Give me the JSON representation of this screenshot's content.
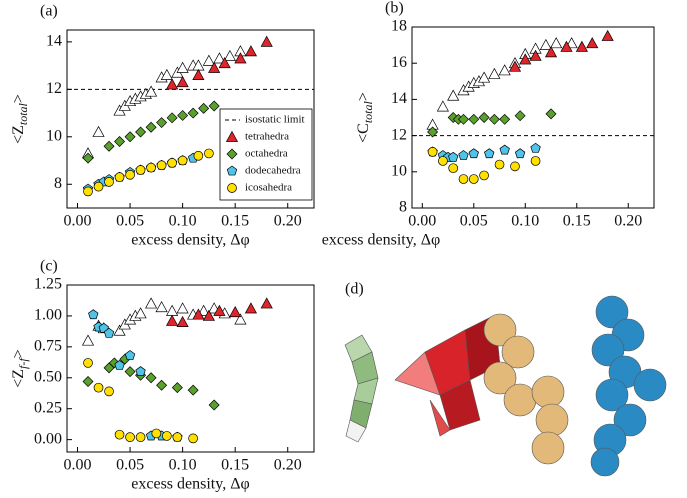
{
  "chart_data": [
    {
      "type": "scatter",
      "panel_label": "(a)",
      "xlabel": "excess density, Δφ",
      "ylabel": {
        "text": "<Z",
        "sub": "total",
        "end": ">"
      },
      "xlim": [
        -0.01,
        0.225
      ],
      "ylim": [
        7,
        14.5
      ],
      "xticks": [
        {
          "value": 0,
          "label": "0.00"
        },
        0.05,
        {
          "value": 0.1,
          "label": "0.10"
        },
        0.15,
        {
          "value": 0.2,
          "label": "0.20"
        }
      ],
      "yticks": [
        8,
        10,
        12,
        14
      ],
      "reference_line": {
        "value": 12,
        "label": "isostatic limit"
      },
      "legend": "lower right",
      "series": [
        {
          "color": "#ffffff",
          "marker": "triangle",
          "x": [
            0.01,
            0.02,
            0.04,
            0.045,
            0.05,
            0.055,
            0.06,
            0.065,
            0.07,
            0.08,
            0.085,
            0.095,
            0.1,
            0.11,
            0.115,
            0.125,
            0.135,
            0.145,
            0.155
          ],
          "values": [
            9.3,
            10.2,
            11.1,
            11.3,
            11.5,
            11.6,
            11.7,
            11.8,
            11.9,
            12.5,
            12.6,
            12.7,
            12.9,
            13.0,
            13.0,
            13.2,
            13.3,
            13.4,
            13.6
          ]
        },
        {
          "name": "tetrahedra",
          "color": "#e0242c",
          "marker": "triangle",
          "x": [
            0.09,
            0.1,
            0.115,
            0.13,
            0.14,
            0.155,
            0.165,
            0.18
          ],
          "values": [
            12.2,
            12.3,
            12.6,
            12.9,
            13.1,
            13.3,
            13.6,
            14.0
          ]
        },
        {
          "name": "octahedra",
          "color": "#5aa02c",
          "marker": "diamond",
          "x": [
            0.01,
            0.03,
            0.04,
            0.05,
            0.06,
            0.07,
            0.08,
            0.09,
            0.1,
            0.11,
            0.12,
            0.13
          ],
          "values": [
            9.1,
            9.6,
            9.8,
            10.0,
            10.2,
            10.4,
            10.6,
            10.8,
            10.9,
            11.0,
            11.2,
            11.3
          ]
        },
        {
          "name": "dodecahedra",
          "color": "#4fc3e8",
          "marker": "pentagon",
          "x": [
            0.01,
            0.02,
            0.025,
            0.03,
            0.04,
            0.05,
            0.06,
            0.07,
            0.08,
            0.09,
            0.1,
            0.11
          ],
          "values": [
            7.8,
            8.0,
            8.1,
            8.2,
            8.3,
            8.5,
            8.6,
            8.7,
            8.8,
            8.9,
            9.0,
            9.1
          ]
        },
        {
          "name": "icosahedra",
          "color": "#ffe000",
          "marker": "circle",
          "x": [
            0.01,
            0.02,
            0.03,
            0.04,
            0.05,
            0.06,
            0.07,
            0.08,
            0.09,
            0.1,
            0.115,
            0.125
          ],
          "values": [
            7.7,
            7.9,
            8.1,
            8.3,
            8.4,
            8.6,
            8.7,
            8.8,
            8.9,
            9.0,
            9.2,
            9.3
          ]
        }
      ]
    },
    {
      "type": "scatter",
      "panel_label": "(b)",
      "xlabel": "excess density, Δφ",
      "ylabel": {
        "text": "<C",
        "sub": "total",
        "end": ">"
      },
      "xlim": [
        -0.01,
        0.225
      ],
      "ylim": [
        8,
        18
      ],
      "xticks": [
        {
          "value": 0,
          "label": "0.00"
        },
        0.05,
        {
          "value": 0.1,
          "label": "0.10"
        },
        0.15,
        {
          "value": 0.2,
          "label": "0.20"
        }
      ],
      "yticks": [
        8,
        10,
        12,
        14,
        16,
        18
      ],
      "reference_line": {
        "value": 12
      },
      "series": [
        {
          "color": "#ffffff",
          "marker": "triangle",
          "x": [
            0.01,
            0.02,
            0.03,
            0.04,
            0.045,
            0.05,
            0.055,
            0.06,
            0.07,
            0.08,
            0.09,
            0.1,
            0.11,
            0.12,
            0.13,
            0.145
          ],
          "values": [
            12.6,
            13.6,
            14.2,
            14.5,
            14.7,
            14.9,
            15.0,
            15.2,
            15.4,
            15.6,
            16.0,
            16.5,
            16.8,
            17.0,
            17.1,
            17.1
          ]
        },
        {
          "color": "#e0242c",
          "marker": "triangle",
          "x": [
            0.09,
            0.1,
            0.11,
            0.125,
            0.14,
            0.155,
            0.165,
            0.18
          ],
          "values": [
            15.8,
            16.2,
            16.4,
            16.6,
            16.9,
            16.9,
            17.1,
            17.5
          ]
        },
        {
          "color": "#5aa02c",
          "marker": "diamond",
          "x": [
            0.01,
            0.03,
            0.035,
            0.04,
            0.05,
            0.06,
            0.07,
            0.08,
            0.095,
            0.125
          ],
          "values": [
            12.2,
            13.0,
            12.9,
            12.9,
            12.9,
            13.0,
            12.9,
            12.9,
            13.1,
            13.2
          ]
        },
        {
          "color": "#4fc3e8",
          "marker": "pentagon",
          "x": [
            0.01,
            0.02,
            0.025,
            0.03,
            0.04,
            0.05,
            0.065,
            0.08,
            0.095,
            0.11
          ],
          "values": [
            11.1,
            10.9,
            10.8,
            10.8,
            10.9,
            11.0,
            11.0,
            11.2,
            11.0,
            11.3
          ]
        },
        {
          "color": "#ffe000",
          "marker": "circle",
          "x": [
            0.01,
            0.02,
            0.03,
            0.04,
            0.05,
            0.06,
            0.075,
            0.09,
            0.11
          ],
          "values": [
            11.1,
            10.6,
            10.2,
            9.6,
            9.6,
            9.8,
            10.4,
            10.3,
            10.6
          ]
        }
      ]
    },
    {
      "type": "scatter",
      "panel_label": "(c)",
      "xlabel": "excess density, Δφ",
      "ylabel": {
        "text": "<Z",
        "sub": "f-f",
        "end": ">"
      },
      "xlim": [
        -0.01,
        0.225
      ],
      "ylim": [
        -0.1,
        1.25
      ],
      "xticks": [
        {
          "value": 0,
          "label": "0.00"
        },
        0.05,
        {
          "value": 0.1,
          "label": "0.10"
        },
        0.15,
        {
          "value": 0.2,
          "label": "0.20"
        }
      ],
      "yticks": [
        {
          "value": 0,
          "label": "0.00"
        },
        0.25,
        {
          "value": 0.5,
          "label": "0.50"
        },
        0.75,
        {
          "value": 1,
          "label": "1.00"
        },
        1.25
      ],
      "series": [
        {
          "color": "#ffffff",
          "marker": "triangle",
          "x": [
            0.01,
            0.02,
            0.025,
            0.04,
            0.045,
            0.05,
            0.055,
            0.06,
            0.07,
            0.08,
            0.09,
            0.1,
            0.11,
            0.12,
            0.13,
            0.14,
            0.155
          ],
          "values": [
            0.8,
            0.92,
            0.9,
            0.88,
            0.93,
            0.97,
            1.0,
            1.02,
            1.1,
            1.07,
            1.04,
            1.06,
            1.01,
            1.04,
            1.06,
            1.02,
            0.97
          ]
        },
        {
          "color": "#e0242c",
          "marker": "triangle",
          "x": [
            0.09,
            0.1,
            0.115,
            0.125,
            0.135,
            0.15,
            0.165,
            0.18
          ],
          "values": [
            0.96,
            0.95,
            1.01,
            1.0,
            1.04,
            1.03,
            1.06,
            1.1
          ]
        },
        {
          "color": "#5aa02c",
          "marker": "diamond",
          "x": [
            0.01,
            0.03,
            0.035,
            0.045,
            0.05,
            0.06,
            0.07,
            0.08,
            0.095,
            0.11,
            0.13
          ],
          "values": [
            0.47,
            0.58,
            0.62,
            0.65,
            0.55,
            0.52,
            0.5,
            0.44,
            0.42,
            0.4,
            0.28
          ]
        },
        {
          "color": "#4fc3e8",
          "marker": "pentagon",
          "x": [
            0.015,
            0.02,
            0.025,
            0.03,
            0.04,
            0.05,
            0.06,
            0.07,
            0.08,
            0.095
          ],
          "values": [
            1.01,
            0.91,
            0.9,
            0.86,
            0.6,
            0.68,
            0.55,
            0.03,
            0.03,
            0.02
          ]
        },
        {
          "color": "#ffe000",
          "marker": "circle",
          "x": [
            0.01,
            0.02,
            0.03,
            0.04,
            0.05,
            0.06,
            0.075,
            0.085,
            0.095,
            0.11
          ],
          "values": [
            0.62,
            0.42,
            0.39,
            0.04,
            0.02,
            0.02,
            0.05,
            0.03,
            0.02,
            0.01
          ]
        }
      ]
    }
  ],
  "panel_d": {
    "label": "(d)"
  }
}
